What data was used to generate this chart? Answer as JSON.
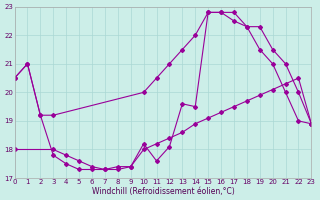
{
  "xlabel": "Windchill (Refroidissement éolien,°C)",
  "ylabel": "",
  "bg_color": "#cceee8",
  "line_color": "#990099",
  "grid_color": "#aad8d4",
  "xlim": [
    0,
    23
  ],
  "ylim": [
    17,
    23
  ],
  "yticks": [
    17,
    18,
    19,
    20,
    21,
    22,
    23
  ],
  "xticks": [
    0,
    1,
    2,
    3,
    4,
    5,
    6,
    7,
    8,
    9,
    10,
    11,
    12,
    13,
    14,
    15,
    16,
    17,
    18,
    19,
    20,
    21,
    22,
    23
  ],
  "curve1_x": [
    0,
    1,
    2,
    3,
    10,
    11,
    12,
    13,
    14,
    15,
    16,
    17,
    18,
    19,
    20,
    21,
    22,
    23
  ],
  "curve1_y": [
    20.5,
    21.0,
    19.2,
    19.2,
    20.0,
    20.5,
    21.0,
    21.5,
    22.0,
    22.8,
    22.8,
    22.5,
    22.3,
    22.3,
    21.5,
    21.0,
    20.0,
    18.9
  ],
  "curve2_x": [
    0,
    1,
    2,
    3,
    4,
    5,
    6,
    7,
    8,
    9,
    10,
    11,
    12,
    13,
    14,
    15,
    16,
    17,
    18,
    19,
    20,
    21,
    22,
    23
  ],
  "curve2_y": [
    20.5,
    21.0,
    19.2,
    17.8,
    17.5,
    17.3,
    17.3,
    17.3,
    17.4,
    17.4,
    18.2,
    17.6,
    18.1,
    19.6,
    19.5,
    22.8,
    22.8,
    22.8,
    22.3,
    21.5,
    21.0,
    20.0,
    19.0,
    18.9
  ],
  "curve3_x": [
    0,
    3,
    4,
    5,
    6,
    7,
    8,
    9,
    10,
    11,
    12,
    13,
    14,
    15,
    16,
    17,
    18,
    19,
    20,
    21,
    22,
    23
  ],
  "curve3_y": [
    18.0,
    18.0,
    17.8,
    17.6,
    17.4,
    17.3,
    17.3,
    17.4,
    18.0,
    18.2,
    18.4,
    18.6,
    18.9,
    19.1,
    19.3,
    19.5,
    19.7,
    19.9,
    20.1,
    20.3,
    20.5,
    18.9
  ]
}
